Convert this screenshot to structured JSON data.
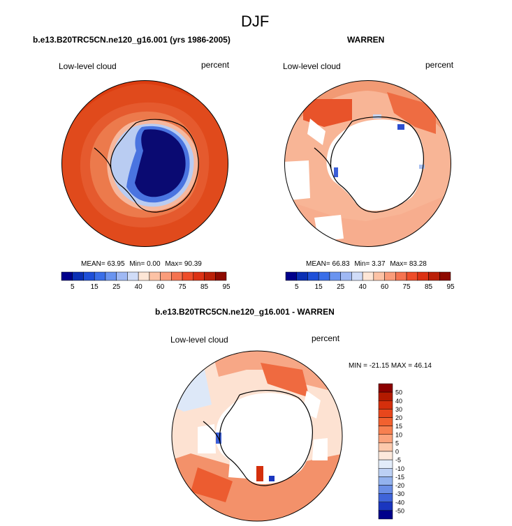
{
  "title": "DJF",
  "colors": {
    "ocean_deep": "#dd4010",
    "ocean_mid": "#e8562a",
    "ocean_light": "#f0906a",
    "ice": "#0a0a6e",
    "land_white": "#ffffff",
    "coast": "#000000",
    "diff_pos": "#f5a07e",
    "diff_neg": "#9fb8e8"
  },
  "chart_data": [
    {
      "type": "heatmap",
      "projection": "polar-stereographic-south",
      "title": "b.e13.B20TRC5CN.ne120_g16.001 (yrs 1986-2005)",
      "left_label": "Low-level cloud",
      "right_label": "percent",
      "stats": {
        "mean_label": "MEAN=",
        "mean": "63.95",
        "min_label": "Min=",
        "min": "0.00",
        "max_label": "Max=",
        "max": "90.39"
      },
      "colorbar": {
        "orientation": "horizontal",
        "tick_labels": [
          "5",
          "15",
          "25",
          "40",
          "60",
          "75",
          "85",
          "95"
        ],
        "colors": [
          "#00008b",
          "#0a2fb4",
          "#1e4fd8",
          "#3a6ee8",
          "#6a94f0",
          "#9fb8f4",
          "#d0dcf8",
          "#fde6d6",
          "#fcc2a5",
          "#fa9c7a",
          "#f57350",
          "#ee4d2a",
          "#dc3214",
          "#bb2008",
          "#8e0a00"
        ]
      }
    },
    {
      "type": "heatmap",
      "projection": "polar-stereographic-south",
      "title": "WARREN",
      "left_label": "Low-level cloud",
      "right_label": "percent",
      "stats": {
        "mean_label": "MEAN=",
        "mean": "66.83",
        "min_label": "Min=",
        "min": "3.37",
        "max_label": "Max=",
        "max": "83.28"
      },
      "colorbar": {
        "orientation": "horizontal",
        "tick_labels": [
          "5",
          "15",
          "25",
          "40",
          "60",
          "75",
          "85",
          "95"
        ],
        "colors": [
          "#00008b",
          "#0a2fb4",
          "#1e4fd8",
          "#3a6ee8",
          "#6a94f0",
          "#9fb8f4",
          "#d0dcf8",
          "#fde6d6",
          "#fcc2a5",
          "#fa9c7a",
          "#f57350",
          "#ee4d2a",
          "#dc3214",
          "#bb2008",
          "#8e0a00"
        ]
      }
    },
    {
      "type": "heatmap",
      "projection": "polar-stereographic-south",
      "title": "b.e13.B20TRC5CN.ne120_g16.001 - WARREN",
      "left_label": "Low-level cloud",
      "right_label": "percent",
      "stats_text": "MIN = -21.15 MAX =  46.14",
      "colorbar": {
        "orientation": "vertical",
        "tick_labels": [
          "50",
          "40",
          "30",
          "20",
          "15",
          "10",
          "5",
          "0",
          "-5",
          "-10",
          "-15",
          "-20",
          "-30",
          "-40",
          "-50"
        ],
        "colors": [
          "#8b0000",
          "#b31a00",
          "#d42f0c",
          "#e8471c",
          "#f2612f",
          "#f78050",
          "#fba37c",
          "#fdc9ac",
          "#fde9dc",
          "#e2ecfa",
          "#bcd0f4",
          "#93b2ee",
          "#6a8ee6",
          "#3f64d9",
          "#1a36bf",
          "#00008b"
        ]
      }
    }
  ]
}
